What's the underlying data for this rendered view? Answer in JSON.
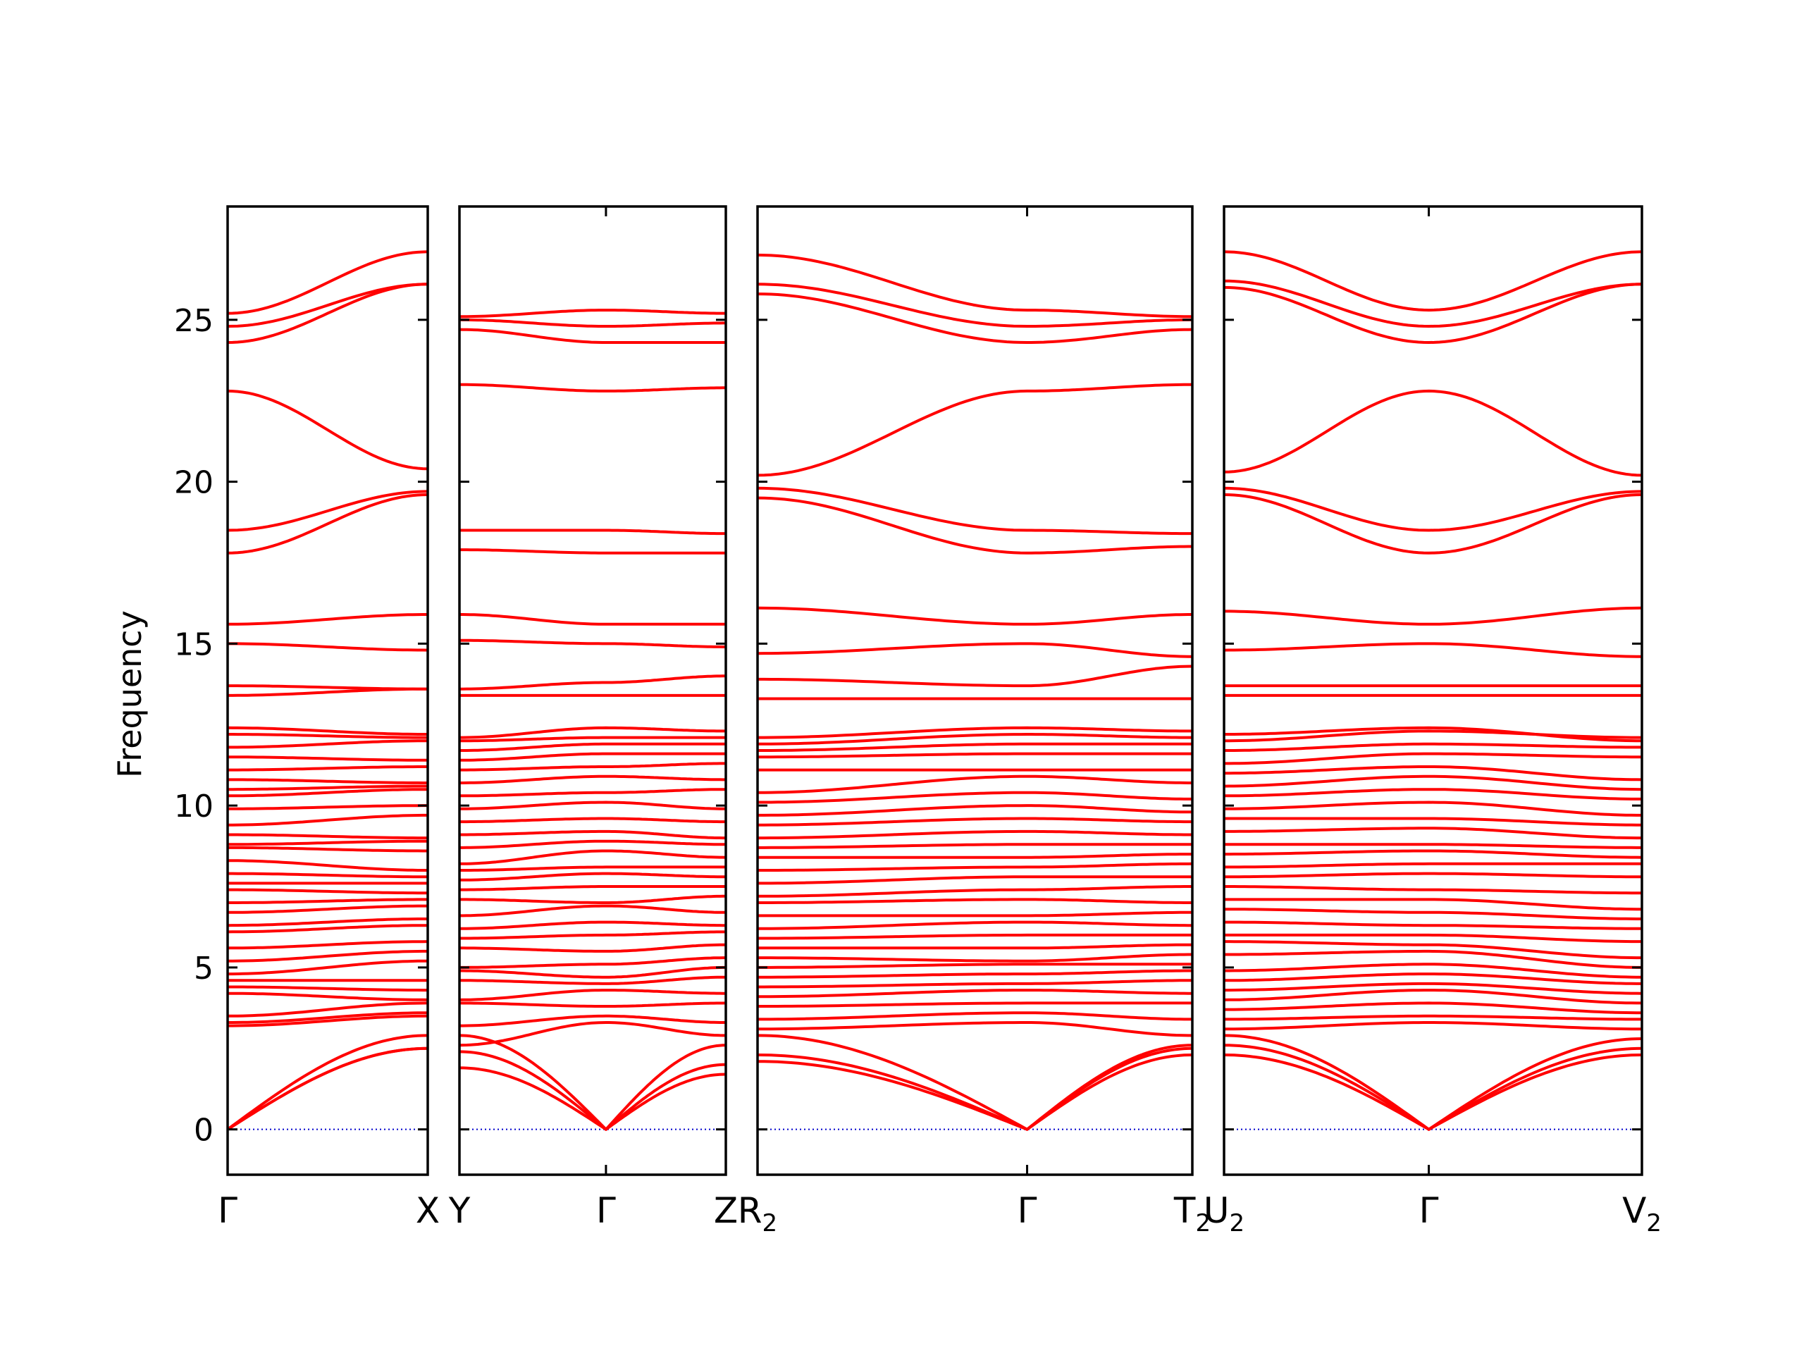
{
  "chart_data": {
    "type": "line",
    "title": "",
    "ylabel": "Frequency",
    "xlabel": "",
    "ylim": [
      -1.4,
      28.5
    ],
    "yticks": [
      0,
      5,
      10,
      15,
      20,
      25
    ],
    "line_color": "#ff0000",
    "zero_line_color": "#0000cc",
    "grid": false,
    "legend": "none",
    "panels": [
      {
        "path": [
          "Γ",
          "X"
        ],
        "tick_labels": [
          {
            "text": "Γ",
            "sub": ""
          },
          {
            "text": "X",
            "sub": ""
          }
        ],
        "k_values": [
          0,
          1
        ],
        "bands": [
          {
            "start": 0.0,
            "end": 2.5,
            "shape": "acoustic"
          },
          {
            "start": 0.0,
            "end": 2.5,
            "shape": "acoustic"
          },
          {
            "start": 0.0,
            "end": 2.9,
            "shape": "acoustic"
          },
          {
            "start": 3.2,
            "end": 3.5
          },
          {
            "start": 3.3,
            "end": 3.6
          },
          {
            "start": 3.5,
            "end": 3.9
          },
          {
            "start": 4.2,
            "end": 4.0
          },
          {
            "start": 4.4,
            "end": 4.3
          },
          {
            "start": 4.6,
            "end": 4.6
          },
          {
            "start": 4.8,
            "end": 5.2
          },
          {
            "start": 5.2,
            "end": 5.5
          },
          {
            "start": 5.6,
            "end": 5.8
          },
          {
            "start": 6.1,
            "end": 6.3
          },
          {
            "start": 6.3,
            "end": 6.5
          },
          {
            "start": 6.7,
            "end": 6.9
          },
          {
            "start": 7.0,
            "end": 7.1
          },
          {
            "start": 7.4,
            "end": 7.3
          },
          {
            "start": 7.6,
            "end": 7.6
          },
          {
            "start": 7.9,
            "end": 7.8
          },
          {
            "start": 8.3,
            "end": 8.0
          },
          {
            "start": 8.7,
            "end": 8.6
          },
          {
            "start": 8.8,
            "end": 8.9
          },
          {
            "start": 9.1,
            "end": 9.0
          },
          {
            "start": 9.4,
            "end": 9.7
          },
          {
            "start": 9.9,
            "end": 10.0
          },
          {
            "start": 10.3,
            "end": 10.5
          },
          {
            "start": 10.5,
            "end": 10.6
          },
          {
            "start": 10.8,
            "end": 10.7
          },
          {
            "start": 11.1,
            "end": 11.2
          },
          {
            "start": 11.5,
            "end": 11.4
          },
          {
            "start": 11.8,
            "end": 12.0
          },
          {
            "start": 12.2,
            "end": 12.1
          },
          {
            "start": 12.4,
            "end": 12.2
          },
          {
            "start": 13.4,
            "end": 13.6
          },
          {
            "start": 13.7,
            "end": 13.6
          },
          {
            "start": 15.0,
            "end": 14.8
          },
          {
            "start": 15.6,
            "end": 15.9
          },
          {
            "start": 17.8,
            "end": 19.6
          },
          {
            "start": 18.5,
            "end": 19.7
          },
          {
            "start": 22.8,
            "end": 20.4
          },
          {
            "start": 24.3,
            "end": 26.1
          },
          {
            "start": 24.8,
            "end": 26.1
          },
          {
            "start": 25.2,
            "end": 27.1
          }
        ]
      },
      {
        "path": [
          "Y",
          "Γ",
          "Z"
        ],
        "tick_labels": [
          {
            "text": "Y",
            "sub": ""
          },
          {
            "text": "Γ",
            "sub": ""
          },
          {
            "text": "Z",
            "sub": ""
          }
        ],
        "k_values": [
          0,
          0.55,
          1
        ],
        "bands": [
          {
            "y": [
              1.9,
              0.0,
              1.7
            ],
            "shape": "acoustic"
          },
          {
            "y": [
              2.4,
              0.0,
              2.0
            ],
            "shape": "acoustic"
          },
          {
            "y": [
              2.9,
              0.0,
              2.6
            ],
            "shape": "acoustic"
          },
          {
            "y": [
              2.6,
              3.3,
              2.9
            ]
          },
          {
            "y": [
              3.2,
              3.5,
              3.3
            ]
          },
          {
            "y": [
              3.9,
              3.8,
              3.9
            ]
          },
          {
            "y": [
              4.0,
              4.3,
              4.2
            ]
          },
          {
            "y": [
              4.6,
              4.5,
              4.7
            ]
          },
          {
            "y": [
              4.9,
              4.7,
              5.0
            ]
          },
          {
            "y": [
              5.0,
              5.1,
              5.3
            ]
          },
          {
            "y": [
              5.6,
              5.5,
              5.7
            ]
          },
          {
            "y": [
              5.9,
              6.0,
              6.1
            ]
          },
          {
            "y": [
              6.2,
              6.4,
              6.3
            ]
          },
          {
            "y": [
              6.6,
              6.9,
              6.7
            ]
          },
          {
            "y": [
              7.1,
              7.0,
              7.2
            ]
          },
          {
            "y": [
              7.4,
              7.5,
              7.5
            ]
          },
          {
            "y": [
              7.7,
              7.9,
              7.8
            ]
          },
          {
            "y": [
              8.0,
              8.1,
              8.1
            ]
          },
          {
            "y": [
              8.2,
              8.6,
              8.4
            ]
          },
          {
            "y": [
              8.7,
              8.9,
              8.8
            ]
          },
          {
            "y": [
              9.1,
              9.2,
              9.0
            ]
          },
          {
            "y": [
              9.5,
              9.6,
              9.5
            ]
          },
          {
            "y": [
              9.9,
              10.1,
              9.9
            ]
          },
          {
            "y": [
              10.3,
              10.4,
              10.5
            ]
          },
          {
            "y": [
              10.7,
              10.9,
              10.8
            ]
          },
          {
            "y": [
              11.1,
              11.2,
              11.3
            ]
          },
          {
            "y": [
              11.4,
              11.6,
              11.6
            ]
          },
          {
            "y": [
              11.7,
              11.9,
              11.9
            ]
          },
          {
            "y": [
              12.0,
              12.1,
              12.1
            ]
          },
          {
            "y": [
              12.1,
              12.4,
              12.3
            ]
          },
          {
            "y": [
              13.4,
              13.4,
              13.4
            ]
          },
          {
            "y": [
              13.6,
              13.8,
              14.0
            ]
          },
          {
            "y": [
              15.1,
              15.0,
              14.9
            ]
          },
          {
            "y": [
              15.9,
              15.6,
              15.6
            ]
          },
          {
            "y": [
              17.9,
              17.8,
              17.8
            ]
          },
          {
            "y": [
              18.5,
              18.5,
              18.4
            ]
          },
          {
            "y": [
              23.0,
              22.8,
              22.9
            ]
          },
          {
            "y": [
              24.7,
              24.3,
              24.3
            ]
          },
          {
            "y": [
              25.0,
              24.8,
              24.9
            ]
          },
          {
            "y": [
              25.1,
              25.3,
              25.2
            ]
          }
        ]
      },
      {
        "path": [
          "R2",
          "Γ",
          "T2"
        ],
        "tick_labels": [
          {
            "text": "R",
            "sub": "2"
          },
          {
            "text": "Γ",
            "sub": ""
          },
          {
            "text": "T",
            "sub": "2"
          }
        ],
        "k_values": [
          0,
          0.62,
          1
        ],
        "bands": [
          {
            "y": [
              2.1,
              0.0,
              2.3
            ],
            "shape": "acoustic"
          },
          {
            "y": [
              2.3,
              0.0,
              2.5
            ],
            "shape": "acoustic"
          },
          {
            "y": [
              2.9,
              0.0,
              2.6
            ],
            "shape": "acoustic"
          },
          {
            "y": [
              3.1,
              3.3,
              2.9
            ]
          },
          {
            "y": [
              3.4,
              3.6,
              3.4
            ]
          },
          {
            "y": [
              3.8,
              3.9,
              3.9
            ]
          },
          {
            "y": [
              4.1,
              4.3,
              4.2
            ]
          },
          {
            "y": [
              4.4,
              4.5,
              4.6
            ]
          },
          {
            "y": [
              4.7,
              4.8,
              4.9
            ]
          },
          {
            "y": [
              5.0,
              5.1,
              5.1
            ]
          },
          {
            "y": [
              5.3,
              5.2,
              5.4
            ]
          },
          {
            "y": [
              5.6,
              5.6,
              5.7
            ]
          },
          {
            "y": [
              5.9,
              6.0,
              6.0
            ]
          },
          {
            "y": [
              6.2,
              6.4,
              6.3
            ]
          },
          {
            "y": [
              6.6,
              6.6,
              6.7
            ]
          },
          {
            "y": [
              7.0,
              7.1,
              7.0
            ]
          },
          {
            "y": [
              7.2,
              7.4,
              7.5
            ]
          },
          {
            "y": [
              7.6,
              7.8,
              7.8
            ]
          },
          {
            "y": [
              8.0,
              8.1,
              8.2
            ]
          },
          {
            "y": [
              8.4,
              8.4,
              8.5
            ]
          },
          {
            "y": [
              8.7,
              8.8,
              8.8
            ]
          },
          {
            "y": [
              9.0,
              9.2,
              9.1
            ]
          },
          {
            "y": [
              9.4,
              9.6,
              9.5
            ]
          },
          {
            "y": [
              9.7,
              10.0,
              9.8
            ]
          },
          {
            "y": [
              10.1,
              10.4,
              10.2
            ]
          },
          {
            "y": [
              10.4,
              10.9,
              10.7
            ]
          },
          {
            "y": [
              11.1,
              11.1,
              11.1
            ]
          },
          {
            "y": [
              11.5,
              11.6,
              11.6
            ]
          },
          {
            "y": [
              11.7,
              11.9,
              11.9
            ]
          },
          {
            "y": [
              11.9,
              12.2,
              12.1
            ]
          },
          {
            "y": [
              12.1,
              12.4,
              12.3
            ]
          },
          {
            "y": [
              13.3,
              13.3,
              13.3
            ]
          },
          {
            "y": [
              13.9,
              13.7,
              14.3
            ]
          },
          {
            "y": [
              14.7,
              15.0,
              14.6
            ]
          },
          {
            "y": [
              16.1,
              15.6,
              15.9
            ]
          },
          {
            "y": [
              19.5,
              17.8,
              18.0
            ]
          },
          {
            "y": [
              19.8,
              18.5,
              18.4
            ]
          },
          {
            "y": [
              20.2,
              22.8,
              23.0
            ]
          },
          {
            "y": [
              25.8,
              24.3,
              24.7
            ]
          },
          {
            "y": [
              26.1,
              24.8,
              25.0
            ]
          },
          {
            "y": [
              27.0,
              25.3,
              25.1
            ]
          }
        ]
      },
      {
        "path": [
          "U2",
          "Γ",
          "V2"
        ],
        "tick_labels": [
          {
            "text": "U",
            "sub": "2"
          },
          {
            "text": "Γ",
            "sub": ""
          },
          {
            "text": "V",
            "sub": "2"
          }
        ],
        "k_values": [
          0,
          0.49,
          1
        ],
        "bands": [
          {
            "y": [
              2.3,
              0.0,
              2.3
            ],
            "shape": "acoustic"
          },
          {
            "y": [
              2.6,
              0.0,
              2.5
            ],
            "shape": "acoustic"
          },
          {
            "y": [
              2.9,
              0.0,
              2.8
            ],
            "shape": "acoustic"
          },
          {
            "y": [
              3.1,
              3.3,
              3.1
            ]
          },
          {
            "y": [
              3.4,
              3.5,
              3.4
            ]
          },
          {
            "y": [
              3.7,
              3.9,
              3.6
            ]
          },
          {
            "y": [
              4.0,
              4.3,
              3.9
            ]
          },
          {
            "y": [
              4.3,
              4.5,
              4.2
            ]
          },
          {
            "y": [
              4.6,
              4.8,
              4.5
            ]
          },
          {
            "y": [
              4.9,
              5.1,
              4.7
            ]
          },
          {
            "y": [
              5.4,
              5.5,
              5.0
            ]
          },
          {
            "y": [
              5.8,
              5.7,
              5.3
            ]
          },
          {
            "y": [
              6.0,
              6.0,
              5.8
            ]
          },
          {
            "y": [
              6.4,
              6.3,
              6.2
            ]
          },
          {
            "y": [
              6.8,
              6.7,
              6.5
            ]
          },
          {
            "y": [
              7.1,
              7.1,
              6.8
            ]
          },
          {
            "y": [
              7.5,
              7.4,
              7.3
            ]
          },
          {
            "y": [
              7.8,
              7.9,
              7.8
            ]
          },
          {
            "y": [
              8.1,
              8.2,
              8.2
            ]
          },
          {
            "y": [
              8.5,
              8.6,
              8.4
            ]
          },
          {
            "y": [
              8.8,
              8.8,
              8.7
            ]
          },
          {
            "y": [
              9.2,
              9.3,
              9.0
            ]
          },
          {
            "y": [
              9.6,
              9.6,
              9.4
            ]
          },
          {
            "y": [
              9.9,
              10.1,
              9.7
            ]
          },
          {
            "y": [
              10.3,
              10.5,
              10.2
            ]
          },
          {
            "y": [
              10.6,
              10.9,
              10.5
            ]
          },
          {
            "y": [
              11.0,
              11.2,
              10.8
            ]
          },
          {
            "y": [
              11.3,
              11.6,
              11.5
            ]
          },
          {
            "y": [
              11.7,
              11.9,
              11.8
            ]
          },
          {
            "y": [
              12.0,
              12.3,
              12.1
            ]
          },
          {
            "y": [
              12.2,
              12.4,
              12.0
            ]
          },
          {
            "y": [
              13.4,
              13.4,
              13.4
            ]
          },
          {
            "y": [
              13.7,
              13.7,
              13.7
            ]
          },
          {
            "y": [
              14.8,
              15.0,
              14.6
            ]
          },
          {
            "y": [
              16.0,
              15.6,
              16.1
            ]
          },
          {
            "y": [
              19.6,
              17.8,
              19.6
            ]
          },
          {
            "y": [
              19.8,
              18.5,
              19.7
            ]
          },
          {
            "y": [
              20.3,
              22.8,
              20.2
            ]
          },
          {
            "y": [
              26.0,
              24.3,
              26.1
            ]
          },
          {
            "y": [
              26.2,
              24.8,
              26.1
            ]
          },
          {
            "y": [
              27.1,
              25.3,
              27.1
            ]
          }
        ]
      }
    ]
  }
}
